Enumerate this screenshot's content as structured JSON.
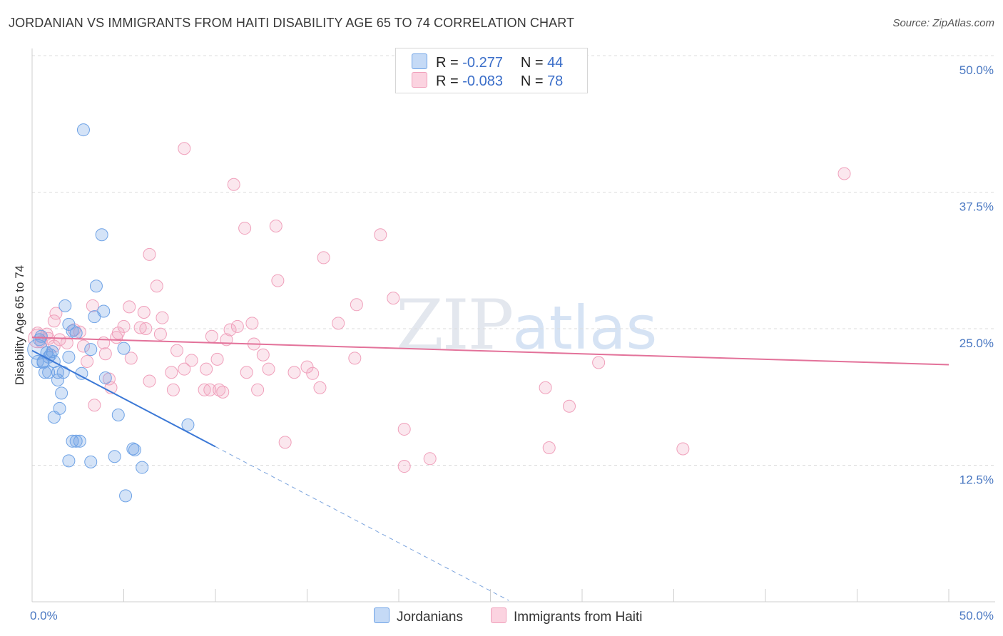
{
  "title": "JORDANIAN VS IMMIGRANTS FROM HAITI DISABILITY AGE 65 TO 74 CORRELATION CHART",
  "source": "Source: ZipAtlas.com",
  "watermark": {
    "zip": "ZIP",
    "atlas": "atlas"
  },
  "legend": {
    "rows": [
      {
        "r_label": "R =",
        "r_value": "-0.277",
        "n_label": "N =",
        "n_value": "44",
        "color": "#6fa3e6"
      },
      {
        "r_label": "R =",
        "r_value": "-0.083",
        "n_label": "N =",
        "n_value": "78",
        "color": "#f0a0bb"
      }
    ]
  },
  "bottom_legend": [
    {
      "label": "Jordanians",
      "color": "#6fa3e6"
    },
    {
      "label": "Immigrants from Haiti",
      "color": "#f0a0bb"
    }
  ],
  "chart_data": {
    "type": "scatter",
    "title": "JORDANIAN VS IMMIGRANTS FROM HAITI DISABILITY AGE 65 TO 74 CORRELATION CHART",
    "xlabel": "",
    "ylabel": "Disability Age 65 to 74",
    "xlim": [
      0,
      50
    ],
    "ylim": [
      0,
      50
    ],
    "x_tick_labels": [
      "0.0%",
      "50.0%"
    ],
    "y_tick_labels": [
      "12.5%",
      "25.0%",
      "37.5%",
      "50.0%"
    ],
    "y_ticks": [
      12.5,
      25.0,
      37.5,
      50.0
    ],
    "grid": true,
    "legend_position": "top-center",
    "series": [
      {
        "name": "Jordanians",
        "color": "#6fa3e6",
        "r": -0.277,
        "n": 44,
        "trend": {
          "x0": 0.0,
          "y0": 23.0,
          "x1": 10.0,
          "y1": 14.2,
          "dash_to_x": 26.0
        },
        "points": [
          [
            2.8,
            43.2
          ],
          [
            3.8,
            33.6
          ],
          [
            3.5,
            28.9
          ],
          [
            1.8,
            27.1
          ],
          [
            3.9,
            26.6
          ],
          [
            3.4,
            26.1
          ],
          [
            2.0,
            25.4
          ],
          [
            2.2,
            24.8
          ],
          [
            2.4,
            24.6
          ],
          [
            0.5,
            24.3
          ],
          [
            3.2,
            23.1
          ],
          [
            5.0,
            23.2
          ],
          [
            0.8,
            22.8
          ],
          [
            0.9,
            22.4
          ],
          [
            1.0,
            22.6
          ],
          [
            2.0,
            22.4
          ],
          [
            0.3,
            22.0
          ],
          [
            0.6,
            22.0
          ],
          [
            1.2,
            22.0
          ],
          [
            0.7,
            21.0
          ],
          [
            0.9,
            21.0
          ],
          [
            1.4,
            21.0
          ],
          [
            1.7,
            21.0
          ],
          [
            2.7,
            20.9
          ],
          [
            4.0,
            20.5
          ],
          [
            1.4,
            20.3
          ],
          [
            1.6,
            19.1
          ],
          [
            1.5,
            17.7
          ],
          [
            1.2,
            16.9
          ],
          [
            4.7,
            17.1
          ],
          [
            8.5,
            16.2
          ],
          [
            2.2,
            14.7
          ],
          [
            2.4,
            14.7
          ],
          [
            2.6,
            14.7
          ],
          [
            5.5,
            14.0
          ],
          [
            5.6,
            13.9
          ],
          [
            4.5,
            13.3
          ],
          [
            2.0,
            12.9
          ],
          [
            3.2,
            12.8
          ],
          [
            6.0,
            12.3
          ],
          [
            5.1,
            9.7
          ],
          [
            0.4,
            24.0
          ],
          [
            1.1,
            22.9
          ],
          [
            0.6,
            21.9
          ]
        ]
      },
      {
        "name": "Immigrants from Haiti",
        "color": "#f0a0bb",
        "r": -0.083,
        "n": 78,
        "trend": {
          "x0": 0.0,
          "y0": 24.2,
          "x1": 50.0,
          "y1": 21.7
        },
        "points": [
          [
            8.3,
            41.5
          ],
          [
            44.3,
            39.2
          ],
          [
            11.0,
            38.2
          ],
          [
            13.3,
            34.4
          ],
          [
            11.6,
            34.2
          ],
          [
            19.0,
            33.6
          ],
          [
            6.4,
            31.8
          ],
          [
            15.9,
            31.5
          ],
          [
            13.4,
            29.4
          ],
          [
            6.8,
            28.9
          ],
          [
            19.7,
            27.8
          ],
          [
            17.7,
            27.2
          ],
          [
            3.3,
            27.1
          ],
          [
            5.3,
            27.0
          ],
          [
            6.1,
            26.5
          ],
          [
            1.3,
            26.4
          ],
          [
            7.1,
            26.0
          ],
          [
            1.2,
            25.7
          ],
          [
            12.0,
            25.5
          ],
          [
            16.7,
            25.5
          ],
          [
            5.0,
            25.2
          ],
          [
            11.2,
            25.2
          ],
          [
            5.9,
            25.1
          ],
          [
            6.2,
            25.0
          ],
          [
            10.8,
            24.9
          ],
          [
            2.3,
            24.9
          ],
          [
            4.7,
            24.6
          ],
          [
            0.3,
            24.6
          ],
          [
            0.8,
            24.5
          ],
          [
            7.0,
            24.5
          ],
          [
            9.8,
            24.3
          ],
          [
            4.6,
            24.2
          ],
          [
            1.5,
            24.0
          ],
          [
            10.6,
            24.0
          ],
          [
            0.5,
            23.8
          ],
          [
            1.9,
            23.7
          ],
          [
            3.9,
            23.7
          ],
          [
            12.1,
            23.6
          ],
          [
            2.8,
            23.4
          ],
          [
            7.9,
            23.0
          ],
          [
            4.0,
            22.7
          ],
          [
            12.6,
            22.6
          ],
          [
            5.4,
            22.3
          ],
          [
            8.7,
            22.1
          ],
          [
            17.6,
            22.3
          ],
          [
            10.1,
            22.2
          ],
          [
            30.9,
            21.9
          ],
          [
            3.0,
            22.0
          ],
          [
            15.0,
            21.5
          ],
          [
            8.3,
            21.3
          ],
          [
            12.9,
            21.3
          ],
          [
            9.5,
            21.3
          ],
          [
            7.6,
            21.0
          ],
          [
            11.7,
            21.0
          ],
          [
            14.3,
            21.0
          ],
          [
            15.3,
            20.9
          ],
          [
            4.2,
            20.4
          ],
          [
            6.4,
            20.2
          ],
          [
            4.3,
            19.6
          ],
          [
            15.7,
            19.6
          ],
          [
            7.7,
            19.4
          ],
          [
            10.2,
            19.4
          ],
          [
            9.4,
            19.4
          ],
          [
            12.3,
            19.4
          ],
          [
            28.0,
            19.6
          ],
          [
            9.7,
            19.4
          ],
          [
            10.4,
            19.2
          ],
          [
            3.4,
            18.0
          ],
          [
            29.3,
            17.9
          ],
          [
            20.3,
            15.8
          ],
          [
            13.8,
            14.6
          ],
          [
            28.2,
            14.1
          ],
          [
            35.5,
            14.0
          ],
          [
            21.7,
            13.1
          ],
          [
            20.3,
            12.4
          ],
          [
            1.2,
            23.4
          ],
          [
            0.9,
            24.1
          ],
          [
            2.6,
            24.7
          ]
        ]
      }
    ]
  }
}
